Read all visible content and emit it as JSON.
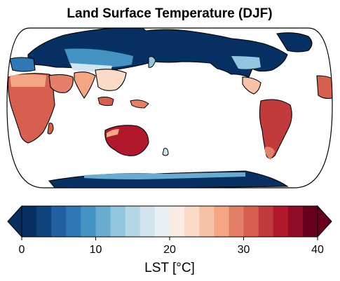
{
  "map": {
    "title": "Land Surface Temperature (DJF)",
    "projection": "robinson",
    "center_longitude": 180,
    "ocean_color": "#ffffff",
    "coastline_color": "#000000"
  },
  "colorbar": {
    "label": "LST [°C]",
    "colormap": "RdBu_r",
    "vmin": 0,
    "vmax": 40,
    "step": 2,
    "extend": "both",
    "ticks": [
      {
        "value": 0,
        "label": "0"
      },
      {
        "value": 10,
        "label": "10"
      },
      {
        "value": 20,
        "label": "20"
      },
      {
        "value": 30,
        "label": "30"
      },
      {
        "value": 40,
        "label": "40"
      }
    ],
    "colors": [
      "#053061",
      "#0f437b",
      "#1f5fa2",
      "#2e78b5",
      "#4393c3",
      "#6aacd0",
      "#92c5de",
      "#b6d7e8",
      "#d1e5f0",
      "#e9f0f4",
      "#f9ece3",
      "#fbdbc7",
      "#f7c2a7",
      "#f4a582",
      "#e58068",
      "#d6604d",
      "#c13b3c",
      "#b2182b",
      "#8e0d25",
      "#67001f"
    ],
    "under_color": "#053061",
    "over_color": "#67001f"
  }
}
